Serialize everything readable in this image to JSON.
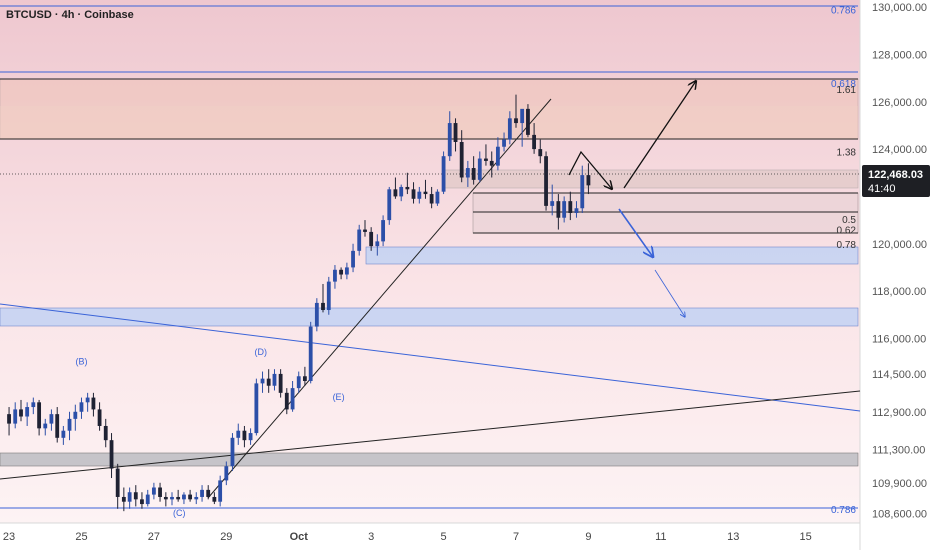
{
  "header": {
    "title": "BTCUSD · 4h · Coinbase"
  },
  "current_price": {
    "value": "122,468.03",
    "countdown": "41:40"
  },
  "colors": {
    "up": "#2c4fa8",
    "down": "#1f2233",
    "blue_line": "#3a63d8",
    "pink_zone": "#f7d9dd",
    "tan_zone": "#f3cfc4",
    "blue_zone": "#c9d6f5",
    "gray_zone": "#c9c9cc"
  },
  "chart_data": {
    "type": "candlestick",
    "symbol": "BTCUSD",
    "timeframe": "4h",
    "exchange": "Coinbase",
    "ylim": [
      108200,
      130300
    ],
    "xlim": [
      -0.25,
      23.5
    ],
    "y_ticks": [
      "130,000.00",
      "128,000.00",
      "126,000.00",
      "124,000.00",
      "120,000.00",
      "118,000.00",
      "116,000.00",
      "114,500.00",
      "112,900.00",
      "111,300.00",
      "109,900.00",
      "108,600.00"
    ],
    "y_tick_values": [
      130000,
      128000,
      126000,
      124000,
      120000,
      118000,
      116000,
      114500,
      112900,
      111300,
      109900,
      108600
    ],
    "x_ticks": [
      {
        "label": "23",
        "day": 0
      },
      {
        "label": "25",
        "day": 2
      },
      {
        "label": "27",
        "day": 4
      },
      {
        "label": "29",
        "day": 6
      },
      {
        "label": "Oct",
        "day": 8
      },
      {
        "label": "3",
        "day": 10
      },
      {
        "label": "5",
        "day": 12
      },
      {
        "label": "7",
        "day": 14
      },
      {
        "label": "9",
        "day": 16
      },
      {
        "label": "11",
        "day": 18
      },
      {
        "label": "13",
        "day": 20
      },
      {
        "label": "15",
        "day": 22
      }
    ],
    "candles": [
      [
        0.0,
        112800,
        113100,
        111900,
        112400
      ],
      [
        0.17,
        112400,
        113300,
        112200,
        113000
      ],
      [
        0.33,
        113000,
        113400,
        112500,
        112700
      ],
      [
        0.5,
        112700,
        113300,
        112300,
        113100
      ],
      [
        0.67,
        113100,
        113500,
        112800,
        113300
      ],
      [
        0.83,
        113300,
        113400,
        111900,
        112200
      ],
      [
        1.0,
        112200,
        112600,
        111900,
        112400
      ],
      [
        1.17,
        112400,
        113000,
        112100,
        112800
      ],
      [
        1.33,
        112800,
        113100,
        111600,
        111800
      ],
      [
        1.5,
        111800,
        112300,
        111500,
        112100
      ],
      [
        1.67,
        112100,
        112900,
        111700,
        112600
      ],
      [
        1.83,
        112600,
        113200,
        112100,
        112900
      ],
      [
        2.0,
        112900,
        113500,
        112600,
        113300
      ],
      [
        2.17,
        113300,
        113700,
        112900,
        113500
      ],
      [
        2.33,
        113500,
        113700,
        112700,
        113000
      ],
      [
        2.5,
        113000,
        113300,
        112100,
        112300
      ],
      [
        2.67,
        112300,
        112600,
        111400,
        111700
      ],
      [
        2.83,
        111700,
        112000,
        110100,
        110500
      ],
      [
        3.0,
        110500,
        110700,
        108800,
        109300
      ],
      [
        3.17,
        109300,
        109700,
        108700,
        109100
      ],
      [
        3.33,
        109100,
        109700,
        108800,
        109500
      ],
      [
        3.5,
        109500,
        109800,
        108900,
        109200
      ],
      [
        3.67,
        109200,
        109500,
        108800,
        109000
      ],
      [
        3.83,
        109000,
        109600,
        108900,
        109400
      ],
      [
        4.0,
        109400,
        109900,
        109200,
        109700
      ],
      [
        4.17,
        109700,
        109900,
        109100,
        109300
      ],
      [
        4.33,
        109300,
        109500,
        108900,
        109200
      ],
      [
        4.5,
        109200,
        109500,
        108950,
        109300
      ],
      [
        4.67,
        109300,
        109600,
        109100,
        109200
      ],
      [
        4.83,
        109200,
        109500,
        109000,
        109400
      ],
      [
        5.0,
        109400,
        109600,
        109100,
        109200
      ],
      [
        5.17,
        109200,
        109500,
        109000,
        109300
      ],
      [
        5.33,
        109300,
        109800,
        109100,
        109600
      ],
      [
        5.5,
        109600,
        109800,
        109200,
        109300
      ],
      [
        5.67,
        109300,
        109500,
        109000,
        109100
      ],
      [
        5.83,
        109100,
        110200,
        108900,
        110000
      ],
      [
        6.0,
        110000,
        110800,
        109800,
        110600
      ],
      [
        6.17,
        110600,
        112000,
        110400,
        111800
      ],
      [
        6.33,
        111800,
        112400,
        111500,
        112100
      ],
      [
        6.5,
        112100,
        112300,
        111400,
        111700
      ],
      [
        6.67,
        111700,
        112200,
        111500,
        112000
      ],
      [
        6.83,
        112000,
        114300,
        111900,
        114100
      ],
      [
        7.0,
        114100,
        114600,
        113700,
        114300
      ],
      [
        7.17,
        114300,
        114700,
        113700,
        114000
      ],
      [
        7.33,
        114000,
        114700,
        113800,
        114500
      ],
      [
        7.5,
        114500,
        114700,
        113500,
        113700
      ],
      [
        7.67,
        113700,
        113900,
        112800,
        113000
      ],
      [
        7.83,
        113000,
        114200,
        112900,
        113900
      ],
      [
        8.0,
        113900,
        114600,
        113700,
        114400
      ],
      [
        8.17,
        114400,
        114800,
        114000,
        114200
      ],
      [
        8.33,
        114200,
        116700,
        114100,
        116500
      ],
      [
        8.5,
        116500,
        117700,
        116300,
        117500
      ],
      [
        8.67,
        117500,
        118300,
        117100,
        117200
      ],
      [
        8.83,
        117200,
        118600,
        117000,
        118400
      ],
      [
        9.0,
        118400,
        119100,
        118100,
        118900
      ],
      [
        9.17,
        118900,
        119000,
        118500,
        118700
      ],
      [
        9.33,
        118700,
        119200,
        118500,
        119000
      ],
      [
        9.5,
        119000,
        120000,
        118800,
        119700
      ],
      [
        9.67,
        119700,
        120800,
        119500,
        120600
      ],
      [
        9.83,
        120600,
        121000,
        120300,
        120500
      ],
      [
        10.0,
        120500,
        120700,
        119700,
        119900
      ],
      [
        10.17,
        119900,
        120400,
        119500,
        120100
      ],
      [
        10.33,
        120100,
        121200,
        119900,
        121000
      ],
      [
        10.5,
        121000,
        122400,
        120800,
        122300
      ],
      [
        10.67,
        122300,
        122800,
        121900,
        122000
      ],
      [
        10.83,
        122000,
        122500,
        121800,
        122400
      ],
      [
        11.0,
        122400,
        123000,
        122100,
        122300
      ],
      [
        11.17,
        122300,
        122600,
        121700,
        121900
      ],
      [
        11.33,
        121900,
        122400,
        121700,
        122200
      ],
      [
        11.5,
        122200,
        122700,
        121900,
        122100
      ],
      [
        11.67,
        122100,
        122400,
        121500,
        121700
      ],
      [
        11.83,
        121700,
        122300,
        121600,
        122200
      ],
      [
        12.0,
        122200,
        123900,
        122100,
        123700
      ],
      [
        12.17,
        123700,
        125600,
        123500,
        125100
      ],
      [
        12.33,
        125100,
        125300,
        123900,
        124300
      ],
      [
        12.5,
        124300,
        124800,
        122600,
        122800
      ],
      [
        12.67,
        122800,
        123500,
        122400,
        123200
      ],
      [
        12.83,
        123200,
        123700,
        122500,
        122700
      ],
      [
        13.0,
        122700,
        123900,
        122600,
        123600
      ],
      [
        13.17,
        123600,
        124200,
        123300,
        123500
      ],
      [
        13.33,
        123500,
        123900,
        122800,
        123300
      ],
      [
        13.5,
        123300,
        124500,
        123100,
        124100
      ],
      [
        13.67,
        124100,
        124700,
        123900,
        124400
      ],
      [
        13.83,
        124400,
        125600,
        124200,
        125300
      ],
      [
        14.0,
        125300,
        126300,
        124900,
        125100
      ],
      [
        14.17,
        125100,
        125500,
        124100,
        125700
      ],
      [
        14.33,
        125700,
        125900,
        124500,
        124600
      ],
      [
        14.5,
        124600,
        125100,
        123800,
        124000
      ],
      [
        14.67,
        124000,
        124400,
        123400,
        123700
      ],
      [
        14.83,
        123700,
        123900,
        121400,
        121600
      ],
      [
        15.0,
        121600,
        122500,
        121200,
        121800
      ],
      [
        15.17,
        121800,
        122100,
        120600,
        121100
      ],
      [
        15.33,
        121100,
        122000,
        120900,
        121800
      ],
      [
        15.5,
        121800,
        122200,
        121000,
        121300
      ],
      [
        15.67,
        121300,
        121800,
        121100,
        121500
      ],
      [
        15.83,
        121500,
        123300,
        121300,
        122900
      ],
      [
        16.0,
        122900,
        123400,
        122100,
        122468
      ]
    ]
  },
  "annotations": {
    "fib_labels": [
      {
        "text": "0.786",
        "price": 129850,
        "blue": true
      },
      {
        "text": "0.618",
        "price": 126750,
        "blue": true
      },
      {
        "text": "1.61",
        "price": 126500,
        "blue": false
      },
      {
        "text": "1.38",
        "price": 123850,
        "blue": false
      },
      {
        "text": "0.5",
        "price": 121000,
        "blue": false
      },
      {
        "text": "0.62",
        "price": 120550,
        "blue": false
      },
      {
        "text": "0.78",
        "price": 119950,
        "blue": false
      },
      {
        "text": "0.786",
        "price": 108750,
        "blue": true
      }
    ],
    "wave_labels": [
      {
        "text": "(B)",
        "day": 2.0,
        "price": 114900
      },
      {
        "text": "(C)",
        "day": 4.7,
        "price": 108500
      },
      {
        "text": "(D)",
        "day": 6.95,
        "price": 115300
      },
      {
        "text": "(E)",
        "day": 9.1,
        "price": 113400
      }
    ]
  }
}
